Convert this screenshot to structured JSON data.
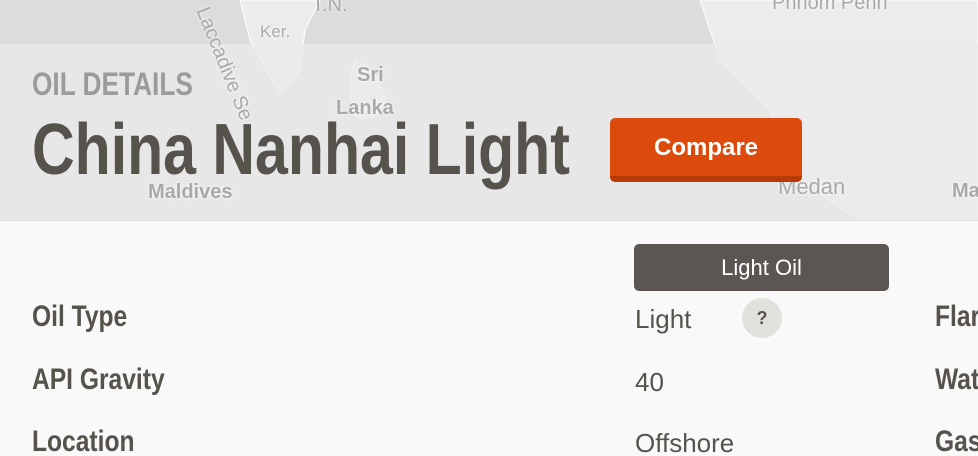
{
  "map": {
    "labels": [
      "T.N.",
      "Ker.",
      "Laccadive Se",
      "Sri",
      "Lanka",
      "Maldives",
      "Phnom Penh",
      "Medan",
      "Ma"
    ]
  },
  "header": {
    "eyebrow": "OIL DETAILS",
    "title": "China Nanhai Light",
    "button": "Compare"
  },
  "details": {
    "badge": "Light Oil",
    "help": "?",
    "rows": [
      [
        "Oil Type",
        "Light"
      ],
      [
        "API Gravity",
        40
      ],
      [
        "Location",
        "Offshore"
      ]
    ],
    "right_labels": [
      "Flar",
      "Wat",
      "Gas"
    ]
  }
}
